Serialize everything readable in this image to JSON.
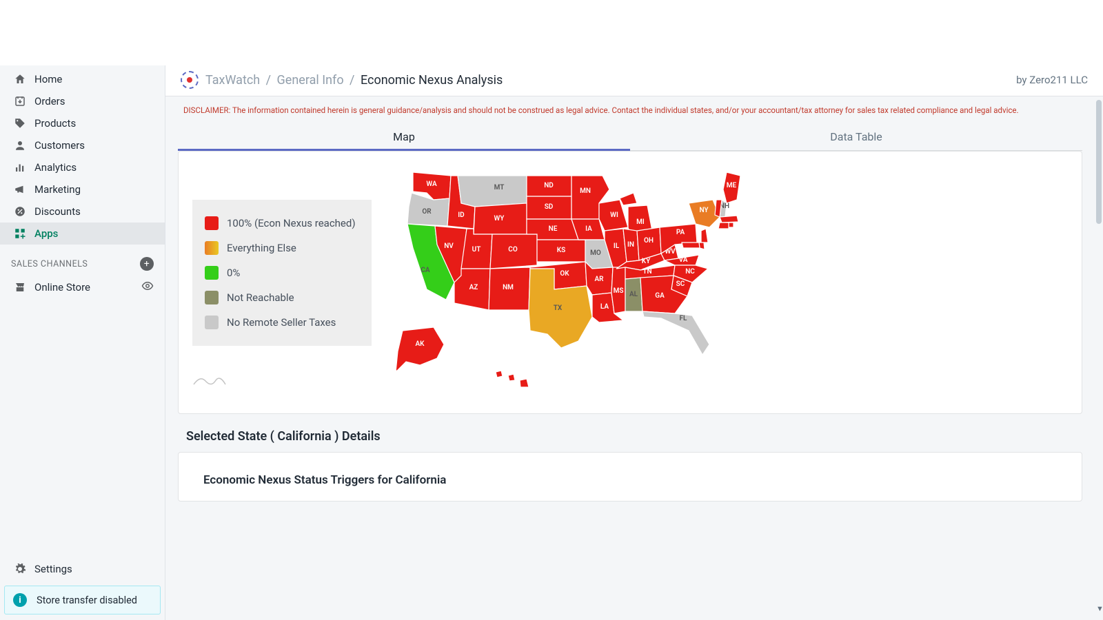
{
  "sidebar": {
    "items": [
      {
        "label": "Home",
        "icon": "home",
        "active": false
      },
      {
        "label": "Orders",
        "icon": "orders",
        "active": false
      },
      {
        "label": "Products",
        "icon": "tag",
        "active": false
      },
      {
        "label": "Customers",
        "icon": "person",
        "active": false
      },
      {
        "label": "Analytics",
        "icon": "bars",
        "active": false
      },
      {
        "label": "Marketing",
        "icon": "megaphone",
        "active": false
      },
      {
        "label": "Discounts",
        "icon": "discount",
        "active": false
      },
      {
        "label": "Apps",
        "icon": "apps",
        "active": true
      }
    ],
    "section_label": "SALES CHANNELS",
    "channel": {
      "label": "Online Store"
    },
    "settings_label": "Settings",
    "store_transfer": "Store transfer disabled"
  },
  "header": {
    "crumb_app": "TaxWatch",
    "crumb_mid": "General Info",
    "crumb_leaf": "Economic Nexus Analysis",
    "byline": "by Zero211 LLC"
  },
  "disclaimer": "DISCLAIMER: The information contained herein is general guidance/analysis and should not be construed as legal advice. Contact the individual states, and/or your accountant/tax attorney for sales tax related compliance and legal advice.",
  "tabs": {
    "map": "Map",
    "data_table": "Data Table",
    "active": "map"
  },
  "legend": {
    "items": [
      {
        "color": "#e71c17",
        "label": "100% (Econ Nexus reached)"
      },
      {
        "color": "#e97c24",
        "label": "Everything Else",
        "gradient_to": "#36c a"
      },
      {
        "color": "#34ce19",
        "label": "0%"
      },
      {
        "color": "#8b8f67",
        "label": "Not Reachable"
      },
      {
        "color": "#c9c9c9",
        "label": "No Remote Seller Taxes"
      }
    ]
  },
  "map": {
    "colors": {
      "reached": "#e71c17",
      "orange": "#e97c24",
      "yellow": "#e9a824",
      "green": "#34ce19",
      "notreach": "#8b8f67",
      "none": "#c9c9c9"
    },
    "states": {
      "WA": "reached",
      "OR": "none",
      "CA": "green",
      "ID": "reached",
      "NV": "reached",
      "MT": "none",
      "WY": "reached",
      "UT": "reached",
      "AZ": "reached",
      "CO": "reached",
      "NM": "reached",
      "ND": "reached",
      "SD": "reached",
      "NE": "reached",
      "KS": "reached",
      "OK": "reached",
      "TX": "yellow",
      "MN": "reached",
      "IA": "reached",
      "MO": "none",
      "AR": "reached",
      "LA": "reached",
      "WI": "reached",
      "IL": "reached",
      "MS": "reached",
      "MI": "reached",
      "IN": "reached",
      "OH": "reached",
      "KY": "reached",
      "TN": "reached",
      "AL": "notreach",
      "WV": "reached",
      "VA": "reached",
      "NC": "reached",
      "SC": "reached",
      "GA": "reached",
      "FL": "none",
      "PA": "reached",
      "NY": "orange",
      "ME": "reached",
      "NH": "none",
      "VT": "reached",
      "MA": "reached",
      "RI": "reached",
      "CT": "reached",
      "NJ": "reached",
      "DE": "reached",
      "MD": "reached",
      "AK": "reached",
      "HI": "reached"
    }
  },
  "details": {
    "selected_title": "Selected State ( California ) Details",
    "sub_title": "Economic Nexus Status Triggers for California"
  }
}
